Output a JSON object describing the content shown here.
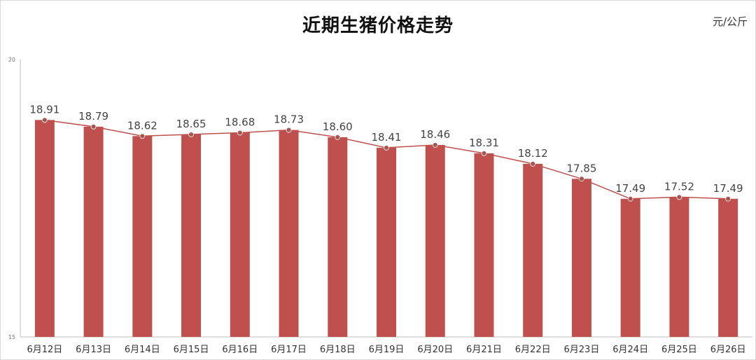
{
  "chart_data": {
    "type": "bar",
    "title": "近期生猪价格走势",
    "unit": "元/公斤",
    "categories": [
      "6月12日",
      "6月13日",
      "6月14日",
      "6月15日",
      "6月16日",
      "6月17日",
      "6月18日",
      "6月19日",
      "6月20日",
      "6月21日",
      "6月22日",
      "6月23日",
      "6月24日",
      "6月25日",
      "6月26日"
    ],
    "values": [
      18.91,
      18.79,
      18.62,
      18.65,
      18.68,
      18.73,
      18.6,
      18.41,
      18.46,
      18.31,
      18.12,
      17.85,
      17.49,
      17.52,
      17.49
    ],
    "value_labels": [
      "18.91",
      "18.79",
      "18.62",
      "18.65",
      "18.68",
      "18.73",
      "18.60",
      "18.41",
      "18.46",
      "18.31",
      "18.12",
      "17.85",
      "17.49",
      "17.52",
      "17.49"
    ],
    "ylim": [
      15,
      20
    ],
    "yticks": [
      "15",
      "20"
    ],
    "overlay": "line",
    "bar_color": "#c0504d",
    "line_color": "#c0504d",
    "marker_color": "#a9554f",
    "legend": "none",
    "grid": false
  }
}
